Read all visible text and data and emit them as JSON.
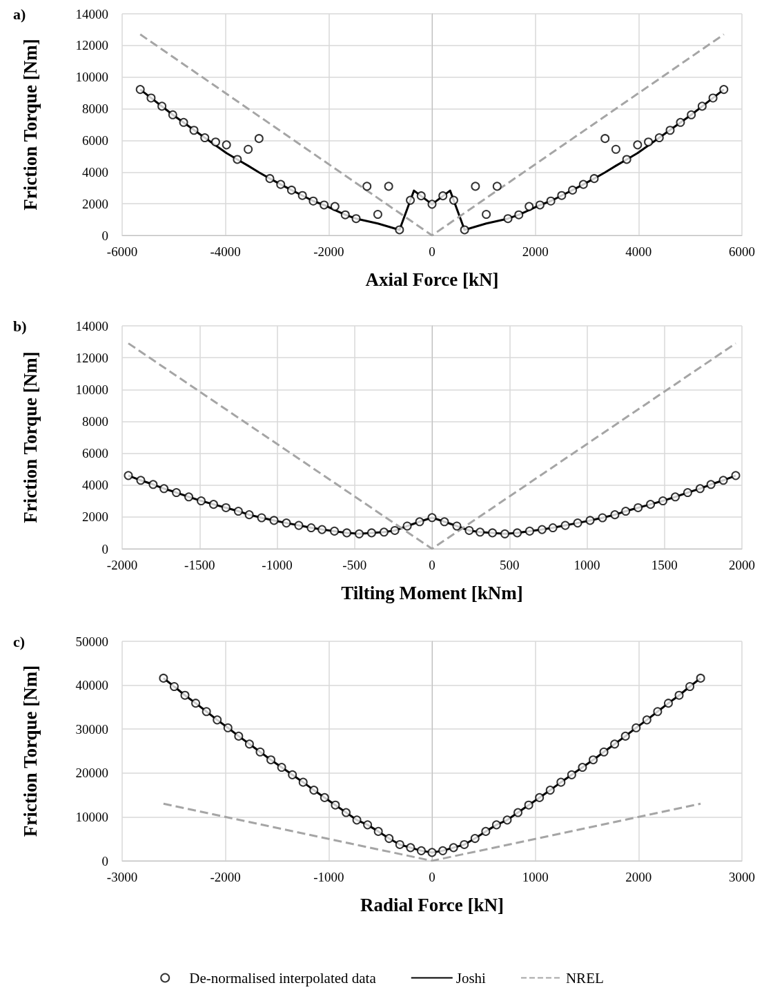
{
  "chart_data": [
    {
      "type": "line",
      "title": "a)",
      "xlabel": "Axial Force [kN]",
      "ylabel": "Friction Torque [Nm]",
      "xlim": [
        -6000,
        6000
      ],
      "xticks": [
        -6000,
        -4000,
        -2000,
        0,
        2000,
        4000,
        6000
      ],
      "ylim": [
        0,
        14000
      ],
      "yticks": [
        0,
        2000,
        4000,
        6000,
        8000,
        10000,
        12000,
        14000
      ],
      "grid": true,
      "legend": false,
      "series": [
        {
          "type": "scatter",
          "marker": "circle",
          "color": "#000000",
          "x": [
            -5650,
            -5440,
            -5230,
            -5020,
            -4810,
            -4610,
            -4400,
            -4190,
            -3980,
            -3770,
            -3560,
            -3350,
            -3140,
            -2930,
            -2720,
            -2510,
            -2300,
            -2090,
            -1880,
            -1680,
            -1470,
            -1260,
            -1050,
            -840,
            -630,
            -420,
            -210,
            0,
            210,
            420,
            630,
            840,
            1050,
            1260,
            1470,
            1680,
            1880,
            2090,
            2300,
            2510,
            2720,
            2930,
            3140,
            3350,
            3560,
            3770,
            3980,
            4190,
            4400,
            4610,
            4810,
            5020,
            5230,
            5440,
            5650
          ],
          "values": [
            9220,
            8680,
            8160,
            7620,
            7140,
            6640,
            6170,
            5900,
            5720,
            4800,
            5440,
            6120,
            3590,
            3220,
            2860,
            2520,
            2170,
            1920,
            1830,
            1300,
            1060,
            3100,
            1330,
            3100,
            350,
            2220,
            2500,
            1970,
            2500,
            2220,
            350,
            3100,
            1330,
            3100,
            1060,
            1300,
            1830,
            1920,
            2170,
            2520,
            2860,
            3220,
            3590,
            6120,
            5440,
            4800,
            5720,
            5900,
            6170,
            6640,
            7140,
            7620,
            8160,
            8680,
            9220
          ]
        },
        {
          "type": "line",
          "marker": "none",
          "line_style": "solid",
          "color": "#000000",
          "x": [
            -5650,
            -5020,
            -4400,
            -3980,
            -3770,
            -3560,
            -3350,
            -3140,
            -2930,
            -2720,
            -2510,
            -2300,
            -2090,
            -1880,
            -1680,
            -1470,
            -1050,
            -630,
            -350,
            0,
            350,
            630,
            1050,
            1470,
            1680,
            1880,
            2090,
            2300,
            2510,
            2720,
            2930,
            3140,
            3350,
            3560,
            3770,
            3980,
            4400,
            5020,
            5650
          ],
          "values": [
            9220,
            7620,
            6170,
            5200,
            4800,
            4400,
            3980,
            3590,
            3220,
            2860,
            2520,
            2170,
            1920,
            1600,
            1300,
            1060,
            750,
            350,
            2830,
            1970,
            2830,
            350,
            750,
            1060,
            1300,
            1600,
            1920,
            2170,
            2520,
            2860,
            3220,
            3590,
            3980,
            4400,
            4800,
            5200,
            6170,
            7620,
            9220
          ]
        },
        {
          "type": "line",
          "marker": "none",
          "line_style": "dashed",
          "color": "#a5a5a5",
          "x": [
            -5650,
            0,
            5650
          ],
          "values": [
            12700,
            0,
            12700
          ]
        }
      ]
    },
    {
      "type": "line",
      "title": "b)",
      "xlabel": "Tilting Moment [kNm]",
      "ylabel": "Friction Torque [Nm]",
      "xlim": [
        -2000,
        2000
      ],
      "xticks": [
        -2000,
        -1500,
        -1000,
        -500,
        0,
        500,
        1000,
        1500,
        2000
      ],
      "ylim": [
        0,
        14000
      ],
      "yticks": [
        0,
        2000,
        4000,
        6000,
        8000,
        10000,
        12000,
        14000
      ],
      "grid": true,
      "legend": false,
      "series": [
        {
          "type": "scatter",
          "marker": "circle",
          "color": "#000000",
          "x": [
            -1960,
            -1880,
            -1800,
            -1730,
            -1650,
            -1570,
            -1490,
            -1410,
            -1330,
            -1250,
            -1180,
            -1100,
            -1020,
            -940,
            -860,
            -780,
            -710,
            -630,
            -550,
            -470,
            -390,
            -310,
            -240,
            -160,
            -80,
            0,
            80,
            160,
            240,
            310,
            390,
            470,
            550,
            630,
            710,
            780,
            860,
            940,
            1020,
            1100,
            1180,
            1250,
            1330,
            1410,
            1490,
            1570,
            1650,
            1730,
            1800,
            1880,
            1960
          ],
          "values": [
            4600,
            4300,
            4040,
            3780,
            3530,
            3260,
            3010,
            2790,
            2580,
            2360,
            2140,
            1950,
            1780,
            1620,
            1470,
            1320,
            1210,
            1110,
            1000,
            940,
            1000,
            1050,
            1150,
            1430,
            1700,
            1960,
            1700,
            1430,
            1150,
            1050,
            1000,
            940,
            1000,
            1110,
            1210,
            1320,
            1470,
            1620,
            1780,
            1950,
            2140,
            2360,
            2580,
            2790,
            3010,
            3260,
            3530,
            3780,
            4040,
            4300,
            4600
          ]
        },
        {
          "type": "line",
          "marker": "none",
          "line_style": "solid",
          "color": "#000000",
          "x": [
            -1960,
            -1880,
            -1800,
            -1730,
            -1650,
            -1570,
            -1490,
            -1410,
            -1330,
            -1250,
            -1180,
            -1100,
            -1020,
            -940,
            -860,
            -780,
            -710,
            -630,
            -550,
            -470,
            -390,
            -310,
            -240,
            -160,
            -80,
            0,
            80,
            160,
            240,
            310,
            390,
            470,
            550,
            630,
            710,
            780,
            860,
            940,
            1020,
            1100,
            1180,
            1250,
            1330,
            1410,
            1490,
            1570,
            1650,
            1730,
            1800,
            1880,
            1960
          ],
          "values": [
            4600,
            4300,
            4040,
            3780,
            3530,
            3260,
            3010,
            2790,
            2580,
            2360,
            2140,
            1950,
            1780,
            1620,
            1470,
            1320,
            1210,
            1110,
            1000,
            940,
            1000,
            1050,
            1150,
            1430,
            1700,
            1960,
            1700,
            1430,
            1150,
            1050,
            1000,
            940,
            1000,
            1110,
            1210,
            1320,
            1470,
            1620,
            1780,
            1950,
            2140,
            2360,
            2580,
            2790,
            3010,
            3260,
            3530,
            3780,
            4040,
            4300,
            4600
          ]
        },
        {
          "type": "line",
          "marker": "none",
          "line_style": "dashed",
          "color": "#a5a5a5",
          "x": [
            -1960,
            0,
            1960
          ],
          "values": [
            12900,
            0,
            12900
          ]
        }
      ]
    },
    {
      "type": "line",
      "title": "c)",
      "xlabel": "Radial Force [kN]",
      "ylabel": "Friction Torque [Nm]",
      "xlim": [
        -3000,
        3000
      ],
      "xticks": [
        -3000,
        -2000,
        -1000,
        0,
        1000,
        2000,
        3000
      ],
      "ylim": [
        0,
        50000
      ],
      "yticks": [
        0,
        10000,
        20000,
        30000,
        40000,
        50000
      ],
      "grid": true,
      "legend": "bottom",
      "series": [
        {
          "name": "De-normalised interpolated data",
          "type": "scatter",
          "marker": "circle",
          "color": "#000000",
          "x": [
            -2600,
            -2496,
            -2392,
            -2288,
            -2184,
            -2080,
            -1976,
            -1872,
            -1768,
            -1664,
            -1560,
            -1456,
            -1352,
            -1248,
            -1144,
            -1040,
            -936,
            -832,
            -728,
            -624,
            -520,
            -416,
            -312,
            -208,
            -104,
            0,
            104,
            208,
            312,
            416,
            520,
            624,
            728,
            832,
            936,
            1040,
            1144,
            1248,
            1352,
            1456,
            1560,
            1664,
            1768,
            1872,
            1976,
            2080,
            2184,
            2288,
            2392,
            2496,
            2600
          ],
          "values": [
            41600,
            39700,
            37700,
            35900,
            34000,
            32100,
            30300,
            28400,
            26600,
            24800,
            23000,
            21300,
            19600,
            17900,
            16100,
            14400,
            12700,
            11000,
            9300,
            8200,
            6700,
            5100,
            3700,
            3000,
            2300,
            1900,
            2300,
            3000,
            3700,
            5100,
            6700,
            8200,
            9300,
            11000,
            12700,
            14400,
            16100,
            17900,
            19600,
            21300,
            23000,
            24800,
            26600,
            28400,
            30300,
            32100,
            34000,
            35900,
            37700,
            39700,
            41600
          ]
        },
        {
          "name": "Joshi",
          "type": "line",
          "marker": "none",
          "line_style": "solid",
          "color": "#000000",
          "x": [
            -2600,
            -2496,
            -2392,
            -2288,
            -2184,
            -2080,
            -1976,
            -1872,
            -1768,
            -1664,
            -1560,
            -1456,
            -1352,
            -1248,
            -1144,
            -1040,
            -936,
            -832,
            -728,
            -624,
            -520,
            -416,
            -312,
            -208,
            -104,
            0,
            104,
            208,
            312,
            416,
            520,
            624,
            728,
            832,
            936,
            1040,
            1144,
            1248,
            1352,
            1456,
            1560,
            1664,
            1768,
            1872,
            1976,
            2080,
            2184,
            2288,
            2392,
            2496,
            2600
          ],
          "values": [
            41600,
            39700,
            37700,
            35900,
            34000,
            32100,
            30300,
            28400,
            26600,
            24800,
            23000,
            21300,
            19600,
            17900,
            16100,
            14400,
            12700,
            11000,
            9300,
            8200,
            6700,
            5100,
            3700,
            3000,
            2300,
            1900,
            2300,
            3000,
            3700,
            5100,
            6700,
            8200,
            9300,
            11000,
            12700,
            14400,
            16100,
            17900,
            19600,
            21300,
            23000,
            24800,
            26600,
            28400,
            30300,
            32100,
            34000,
            35900,
            37700,
            39700,
            41600
          ]
        },
        {
          "name": "NREL",
          "type": "line",
          "marker": "none",
          "line_style": "dashed",
          "color": "#a5a5a5",
          "x": [
            -2600,
            0,
            2600
          ],
          "values": [
            13000,
            0,
            13000
          ]
        }
      ]
    }
  ]
}
